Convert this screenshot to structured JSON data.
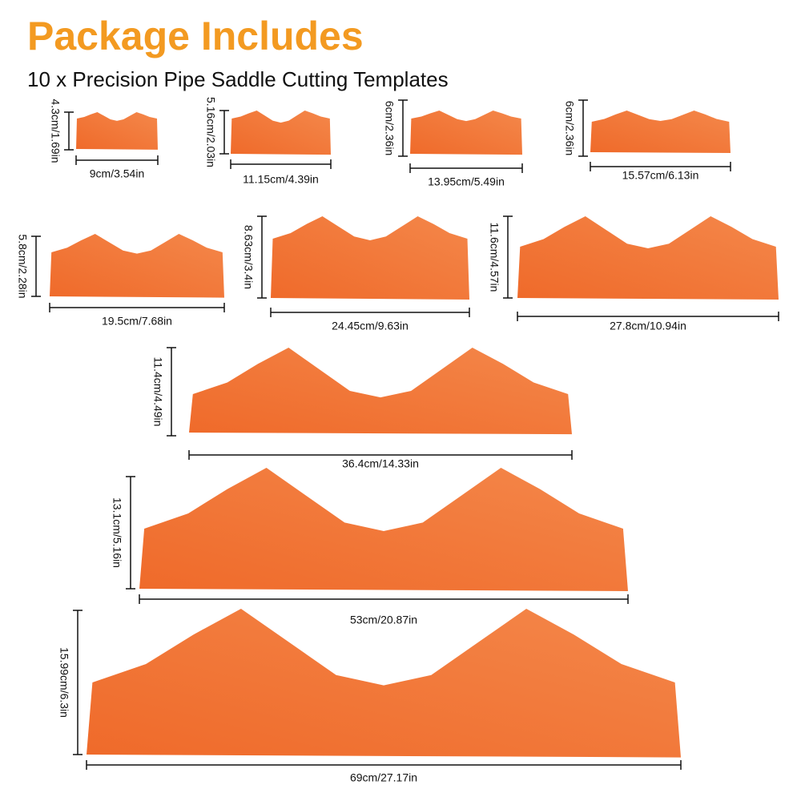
{
  "header": {
    "title": "Package Includes",
    "subtitle": "10 x Precision Pipe Saddle Cutting Templates"
  },
  "templates": [
    {
      "width": "9cm/3.54in",
      "height": "4.3cm/1.69in"
    },
    {
      "width": "11.15cm/4.39in",
      "height": "5.16cm/2.03in"
    },
    {
      "width": "13.95cm/5.49in",
      "height": "6cm/2.36in"
    },
    {
      "width": "15.57cm/6.13in",
      "height": "6cm/2.36in"
    },
    {
      "width": "19.5cm/7.68in",
      "height": "5.8cm/2.28in"
    },
    {
      "width": "24.45cm/9.63in",
      "height": "8.63cm/3.4in"
    },
    {
      "width": "27.8cm/10.94in",
      "height": "11.6cm/4.57in"
    },
    {
      "width": "36.4cm/14.33in",
      "height": "11.4cm/4.49in"
    },
    {
      "width": "53cm/20.87in",
      "height": "13.1cm/5.16in"
    },
    {
      "width": "69cm/27.17in",
      "height": "15.99cm/6.3in"
    }
  ]
}
